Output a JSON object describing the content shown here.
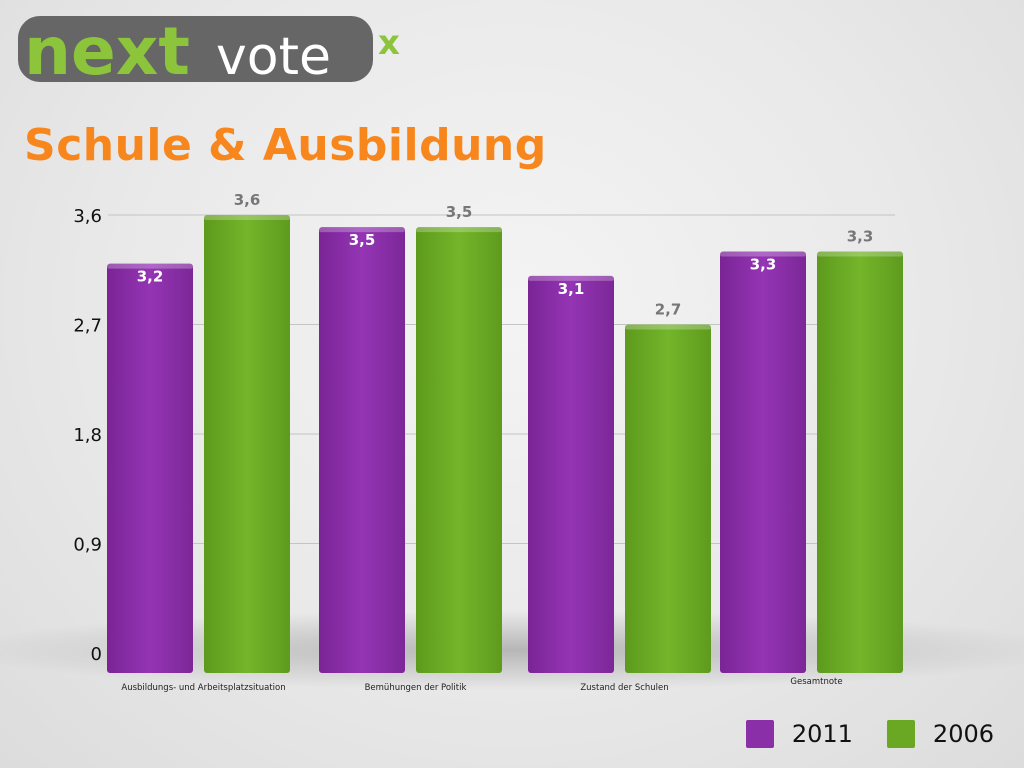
{
  "brand": {
    "logo_next": "next",
    "logo_vote": "vote",
    "logo_x": "x"
  },
  "page": {
    "title": "Schule & Ausbildung"
  },
  "colors": {
    "title": "#f7861d",
    "series_2011": "#8a2fa8",
    "series_2006": "#6aa823",
    "logo_green": "#8cc43c",
    "logo_gray": "#666666"
  },
  "chart_data": {
    "type": "bar",
    "title": "",
    "xlabel": "",
    "ylabel": "",
    "ylim": [
      0,
      3.6
    ],
    "yticks": [
      "0",
      "0,9",
      "1,8",
      "2,7",
      "3,6"
    ],
    "grid": true,
    "legend_position": "bottom-right",
    "categories": [
      "Ausbildungs- und Arbeitsplatzsituation",
      "Bemühungen der Politik",
      "Zustand der Schulen",
      "Gesamtnote"
    ],
    "series": [
      {
        "name": "2011",
        "color": "#8a2fa8",
        "values": [
          3.2,
          3.5,
          3.1,
          3.3
        ],
        "labels": [
          "3,2",
          "3,5",
          "3,1",
          "3,3"
        ]
      },
      {
        "name": "2006",
        "color": "#6aa823",
        "values": [
          3.6,
          3.5,
          2.7,
          3.3
        ],
        "labels": [
          "3,6",
          "3,5",
          "2,7",
          "3,3"
        ]
      }
    ]
  }
}
